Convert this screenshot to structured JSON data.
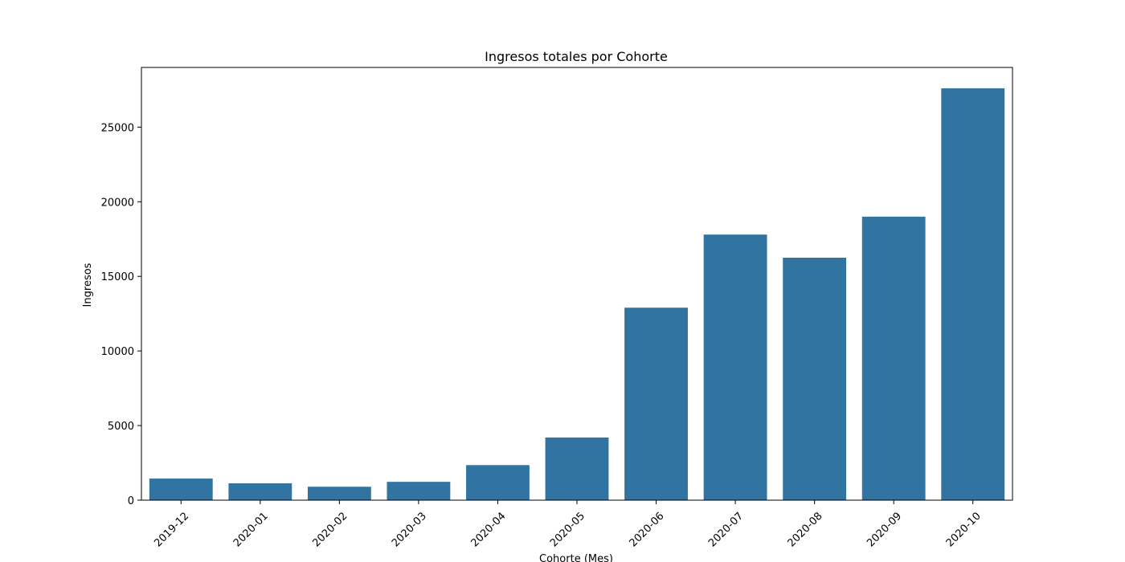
{
  "chart_data": {
    "type": "bar",
    "title": "Ingresos totales por Cohorte",
    "xlabel": "Cohorte (Mes)",
    "ylabel": "Ingresos",
    "categories": [
      "2019-12",
      "2020-01",
      "2020-02",
      "2020-03",
      "2020-04",
      "2020-05",
      "2020-06",
      "2020-07",
      "2020-08",
      "2020-09",
      "2020-10"
    ],
    "values": [
      1450,
      1130,
      900,
      1230,
      2350,
      4200,
      12900,
      17800,
      16250,
      19000,
      27600
    ],
    "ylim": [
      0,
      29000
    ],
    "yticks": [
      0,
      5000,
      10000,
      15000,
      20000,
      25000
    ],
    "bar_color": "#3274a1",
    "grid": false,
    "legend": "none"
  }
}
